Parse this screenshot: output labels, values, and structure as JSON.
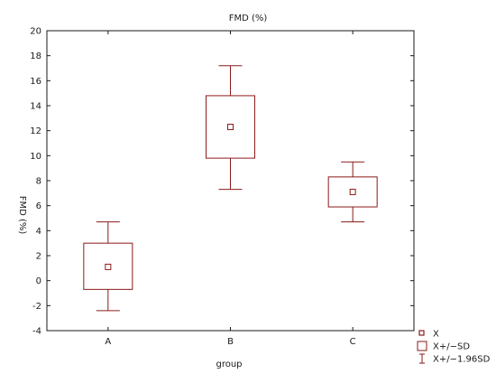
{
  "chart_data": {
    "type": "box",
    "title": "FMD (%)",
    "xlabel": "group",
    "ylabel": "FMD (%)",
    "ylim": [
      -4,
      20
    ],
    "yticks": [
      -4,
      -2,
      0,
      2,
      4,
      6,
      8,
      10,
      12,
      14,
      16,
      18,
      20
    ],
    "categories": [
      "A",
      "B",
      "C"
    ],
    "groups": [
      {
        "name": "A",
        "mean": 1.1,
        "sd_low": -0.7,
        "sd_high": 3.0,
        "ci_low": -2.4,
        "ci_high": 4.7
      },
      {
        "name": "B",
        "mean": 12.3,
        "sd_low": 9.8,
        "sd_high": 14.8,
        "ci_low": 7.3,
        "ci_high": 17.2
      },
      {
        "name": "C",
        "mean": 7.1,
        "sd_low": 5.9,
        "sd_high": 8.3,
        "ci_low": 4.7,
        "ci_high": 9.5
      }
    ],
    "legend": {
      "position": "bottom-right",
      "items": [
        {
          "label": "X",
          "symbol": "square-point"
        },
        {
          "label": "X+/−SD",
          "symbol": "box"
        },
        {
          "label": "X+/−1.96SD",
          "symbol": "whisker"
        }
      ]
    },
    "colors": {
      "series": "#8b1a1a",
      "axis": "#1a1a1a"
    },
    "grid": false
  }
}
